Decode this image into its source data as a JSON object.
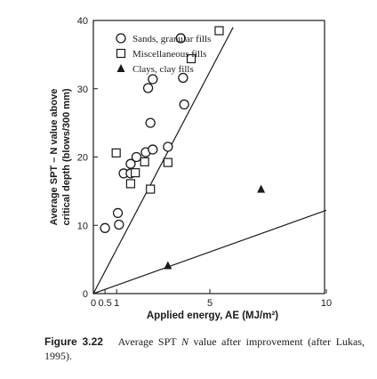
{
  "chart_data": {
    "type": "scatter",
    "xlabel": "Applied energy, AE (MJ/m²)",
    "ylabel_line1": "Average SPT – N value above",
    "ylabel_line2": "critical depth (blows/300 mm)",
    "xlim": [
      0,
      10
    ],
    "ylim": [
      0,
      40
    ],
    "x_ticks": [
      0,
      0.5,
      1,
      5,
      10
    ],
    "x_tick_labels": [
      "0",
      "0.5",
      "1",
      "5",
      "10"
    ],
    "y_ticks": [
      0,
      10,
      20,
      30,
      40
    ],
    "y_tick_labels": [
      "0",
      "10",
      "20",
      "30",
      "40"
    ],
    "scale": "log-like",
    "grid": false,
    "legend_position": "top-left",
    "series": [
      {
        "name": "Sands, granular fills",
        "marker": "circle",
        "points": [
          [
            0.5,
            9.6
          ],
          [
            1.05,
            11.8
          ],
          [
            1.1,
            10.1
          ],
          [
            1.3,
            17.6
          ],
          [
            1.6,
            19.0
          ],
          [
            1.6,
            17.6
          ],
          [
            1.85,
            20.0
          ],
          [
            2.25,
            20.7
          ],
          [
            2.35,
            30.1
          ],
          [
            2.45,
            25.0
          ],
          [
            2.55,
            21.1
          ],
          [
            2.55,
            31.4
          ],
          [
            3.2,
            21.5
          ],
          [
            3.75,
            37.4
          ],
          [
            3.85,
            31.6
          ],
          [
            3.9,
            27.7
          ]
        ]
      },
      {
        "name": "Miscellaneous fills",
        "marker": "square",
        "points": [
          [
            0.98,
            20.6
          ],
          [
            1.6,
            16.1
          ],
          [
            1.8,
            17.7
          ],
          [
            2.2,
            19.3
          ],
          [
            2.45,
            15.3
          ],
          [
            3.2,
            19.2
          ],
          [
            4.2,
            34.4
          ],
          [
            5.4,
            38.5
          ]
        ]
      },
      {
        "name": "Clays, clay fills",
        "marker": "triangle",
        "points": [
          [
            3.2,
            4.1
          ],
          [
            7.2,
            15.3
          ]
        ]
      }
    ],
    "fit_lines": [
      {
        "from": [
          0,
          0
        ],
        "to": [
          6.0,
          39.0
        ]
      },
      {
        "from": [
          0,
          0
        ],
        "to": [
          10,
          12.2
        ]
      }
    ]
  },
  "caption": {
    "figure_number": "Figure 3.22",
    "text_before_symbol": "Average SPT ",
    "symbol": "N",
    "text_after_symbol": " value after improvement (after Lukas, 1995)."
  }
}
